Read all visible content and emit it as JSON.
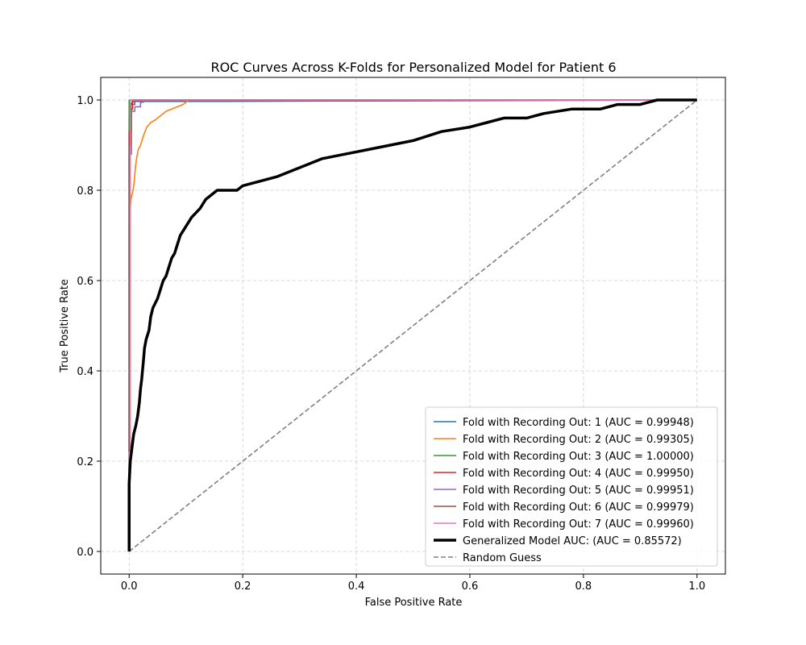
{
  "chart_data": {
    "type": "line",
    "title": "ROC Curves Across K-Folds for Personalized Model for Patient 6",
    "xlabel": "False Positive Rate",
    "ylabel": "True Positive Rate",
    "xlim": [
      -0.05,
      1.05
    ],
    "ylim": [
      -0.05,
      1.05
    ],
    "xticks": [
      0.0,
      0.2,
      0.4,
      0.6,
      0.8,
      1.0
    ],
    "yticks": [
      0.0,
      0.2,
      0.4,
      0.6,
      0.8,
      1.0
    ],
    "tick_labels_x": [
      "0.0",
      "0.2",
      "0.4",
      "0.6",
      "0.8",
      "1.0"
    ],
    "tick_labels_y": [
      "0.0",
      "0.2",
      "0.4",
      "0.6",
      "0.8",
      "1.0"
    ],
    "grid": true,
    "legend_position": "lower-right",
    "series": [
      {
        "name": "Fold with Recording Out: 1 (AUC = 0.99948)",
        "color": "#1f77b4",
        "style": "solid",
        "x": [
          0,
          0,
          0.003,
          0.003,
          0.006,
          0.163,
          1.0
        ],
        "y": [
          0,
          0.96,
          0.96,
          0.99,
          0.997,
          0.997,
          1.0
        ]
      },
      {
        "name": "Fold with Recording Out: 2 (AUC = 0.99305)",
        "color": "#ff7f0e",
        "style": "solid",
        "x": [
          0,
          0,
          0.002,
          0.003,
          0.005,
          0.007,
          0.009,
          0.011,
          0.013,
          0.016,
          0.02,
          0.025,
          0.031,
          0.038,
          0.045,
          0.055,
          0.065,
          0.075,
          0.085,
          0.095,
          0.105,
          0.2,
          1.0
        ],
        "y": [
          0,
          0.72,
          0.76,
          0.78,
          0.79,
          0.8,
          0.82,
          0.85,
          0.87,
          0.89,
          0.9,
          0.92,
          0.94,
          0.95,
          0.955,
          0.965,
          0.975,
          0.98,
          0.985,
          0.99,
          1.0,
          1.0,
          1.0
        ]
      },
      {
        "name": "Fold with Recording Out: 3 (AUC = 1.00000)",
        "color": "#2ca02c",
        "style": "solid",
        "x": [
          0,
          0,
          1.0
        ],
        "y": [
          0,
          1.0,
          1.0
        ]
      },
      {
        "name": "Fold with Recording Out: 4 (AUC = 0.99950)",
        "color": "#d62728",
        "style": "solid",
        "x": [
          0,
          0,
          0.004,
          0.004,
          0.006,
          0.006,
          1.0
        ],
        "y": [
          0,
          0.93,
          0.93,
          0.98,
          0.98,
          1.0,
          1.0
        ]
      },
      {
        "name": "Fold with Recording Out: 5 (AUC = 0.99951)",
        "color": "#9467bd",
        "style": "solid",
        "x": [
          0,
          0,
          0.004,
          0.004,
          0.01,
          0.01,
          0.02,
          0.02,
          0.025,
          0.025,
          1.0
        ],
        "y": [
          0,
          0.88,
          0.88,
          0.975,
          0.975,
          0.985,
          0.985,
          0.995,
          0.995,
          1.0,
          1.0
        ]
      },
      {
        "name": "Fold with Recording Out: 6 (AUC = 0.99979)",
        "color": "#8c564b",
        "style": "solid",
        "x": [
          0,
          0,
          0.003,
          0.003,
          0.01,
          0.01,
          1.0
        ],
        "y": [
          0,
          0.9,
          0.9,
          0.99,
          0.99,
          1.0,
          1.0
        ]
      },
      {
        "name": "Fold with Recording Out: 7 (AUC = 0.99960)",
        "color": "#e377c2",
        "style": "solid",
        "x": [
          0,
          0,
          0.002,
          0.002,
          1.0
        ],
        "y": [
          0,
          0.22,
          0.22,
          1.0,
          1.0
        ]
      },
      {
        "name": "Generalized Model AUC: (AUC = 0.85572)",
        "color": "#000000",
        "style": "thick",
        "x": [
          0,
          0,
          0.002,
          0.004,
          0.006,
          0.008,
          0.01,
          0.012,
          0.015,
          0.018,
          0.02,
          0.022,
          0.025,
          0.027,
          0.03,
          0.035,
          0.038,
          0.042,
          0.046,
          0.05,
          0.055,
          0.06,
          0.065,
          0.07,
          0.075,
          0.08,
          0.085,
          0.09,
          0.095,
          0.1,
          0.105,
          0.11,
          0.125,
          0.135,
          0.145,
          0.155,
          0.165,
          0.175,
          0.19,
          0.2,
          0.26,
          0.3,
          0.34,
          0.38,
          0.42,
          0.46,
          0.5,
          0.55,
          0.6,
          0.63,
          0.66,
          0.7,
          0.73,
          0.78,
          0.8,
          0.83,
          0.86,
          0.9,
          0.93,
          0.96,
          0.99,
          1.0
        ],
        "y": [
          0,
          0.15,
          0.2,
          0.22,
          0.24,
          0.26,
          0.27,
          0.28,
          0.3,
          0.33,
          0.36,
          0.38,
          0.42,
          0.45,
          0.47,
          0.49,
          0.52,
          0.54,
          0.55,
          0.56,
          0.58,
          0.6,
          0.61,
          0.63,
          0.65,
          0.66,
          0.68,
          0.7,
          0.71,
          0.72,
          0.73,
          0.74,
          0.76,
          0.78,
          0.79,
          0.8,
          0.8,
          0.8,
          0.8,
          0.81,
          0.83,
          0.85,
          0.87,
          0.88,
          0.89,
          0.9,
          0.91,
          0.93,
          0.94,
          0.95,
          0.96,
          0.96,
          0.97,
          0.98,
          0.98,
          0.98,
          0.99,
          0.99,
          1.0,
          1.0,
          1.0,
          1.0
        ]
      },
      {
        "name": "Random Guess",
        "color": "#808080",
        "style": "dashed",
        "x": [
          0.0,
          1.0
        ],
        "y": [
          0.0,
          1.0
        ]
      }
    ]
  }
}
